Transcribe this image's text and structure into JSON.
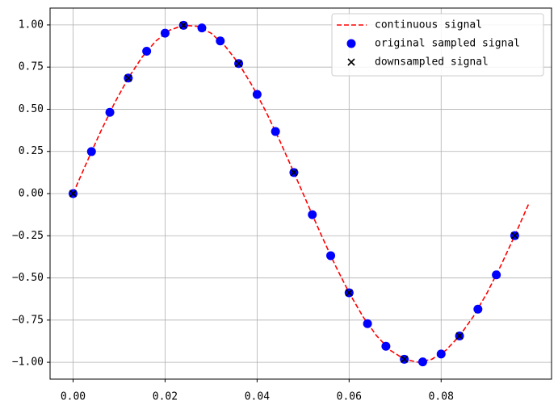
{
  "chart_data": {
    "type": "line",
    "xlim": [
      -0.005,
      0.104
    ],
    "ylim": [
      -1.1,
      1.1
    ],
    "xticks": [
      {
        "value": 0,
        "label": "0.00"
      },
      {
        "value": 0.02,
        "label": "0.02"
      },
      {
        "value": 0.04,
        "label": "0.04"
      },
      {
        "value": 0.06,
        "label": "0.06"
      },
      {
        "value": 0.08,
        "label": "0.08"
      }
    ],
    "yticks": [
      {
        "value": -1,
        "label": "−1.00"
      },
      {
        "value": -0.75,
        "label": "−0.75"
      },
      {
        "value": -0.5,
        "label": "−0.50"
      },
      {
        "value": -0.25,
        "label": "−0.25"
      },
      {
        "value": 0,
        "label": "0.00"
      },
      {
        "value": 0.25,
        "label": "0.25"
      },
      {
        "value": 0.5,
        "label": "0.50"
      },
      {
        "value": 0.75,
        "label": "0.75"
      },
      {
        "value": 1,
        "label": "1.00"
      }
    ],
    "grid": true,
    "legend": "upper right",
    "series": [
      {
        "name": "continuous signal",
        "color": "#ff0000",
        "linestyle": "dashed",
        "x": [
          0,
          0.003,
          0.006,
          0.009,
          0.012,
          0.015,
          0.018,
          0.021,
          0.024,
          0.027,
          0.03,
          0.033,
          0.036,
          0.039,
          0.042,
          0.045,
          0.048,
          0.051,
          0.054,
          0.057,
          0.06,
          0.063,
          0.066,
          0.069,
          0.072,
          0.075,
          0.078,
          0.081,
          0.084,
          0.087,
          0.09,
          0.093,
          0.096,
          0.099
        ],
        "values": [
          0,
          0.187,
          0.368,
          0.536,
          0.685,
          0.809,
          0.905,
          0.969,
          0.998,
          0.992,
          0.951,
          0.876,
          0.771,
          0.637,
          0.482,
          0.309,
          0.125,
          -0.063,
          -0.249,
          -0.426,
          -0.588,
          -0.729,
          -0.844,
          -0.93,
          -0.982,
          -1,
          -0.982,
          -0.93,
          -0.844,
          -0.729,
          -0.588,
          -0.426,
          -0.249,
          -0.063
        ]
      },
      {
        "name": "original sampled signal",
        "color": "#0000ff",
        "marker": "circle",
        "x": [
          0,
          0.004,
          0.008,
          0.012,
          0.016,
          0.02,
          0.024,
          0.028,
          0.032,
          0.036,
          0.04,
          0.044,
          0.048,
          0.052,
          0.056,
          0.06,
          0.064,
          0.068,
          0.072,
          0.076,
          0.08,
          0.084,
          0.088,
          0.092,
          0.096
        ],
        "values": [
          0,
          0.249,
          0.482,
          0.685,
          0.844,
          0.951,
          0.998,
          0.982,
          0.905,
          0.771,
          0.588,
          0.368,
          0.125,
          -0.125,
          -0.368,
          -0.588,
          -0.771,
          -0.905,
          -0.982,
          -0.998,
          -0.951,
          -0.844,
          -0.685,
          -0.482,
          -0.249
        ]
      },
      {
        "name": "downsampled signal",
        "color": "#000000",
        "marker": "x",
        "x": [
          0,
          0.012,
          0.024,
          0.036,
          0.048,
          0.06,
          0.072,
          0.084,
          0.096
        ],
        "values": [
          0,
          0.685,
          0.998,
          0.771,
          0.125,
          -0.588,
          -0.982,
          -0.844,
          -0.249
        ]
      }
    ]
  }
}
